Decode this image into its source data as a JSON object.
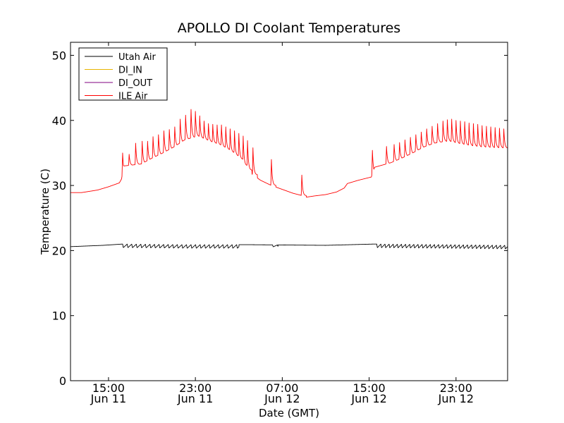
{
  "chart_data": {
    "type": "line",
    "title": "APOLLO DI Coolant Temperatures",
    "xlabel": "Date (GMT)",
    "ylabel": "Temperature (C)",
    "ylim": [
      0,
      52
    ],
    "xlim_hours": [
      11.5,
      51.75
    ],
    "yticks": [
      0,
      10,
      20,
      30,
      40,
      50
    ],
    "xticks": [
      {
        "hour": 15,
        "time": "15:00",
        "date": "Jun 11"
      },
      {
        "hour": 23,
        "time": "23:00",
        "date": "Jun 11"
      },
      {
        "hour": 31,
        "time": "07:00",
        "date": "Jun 12"
      },
      {
        "hour": 39,
        "time": "15:00",
        "date": "Jun 12"
      },
      {
        "hour": 47,
        "time": "23:00",
        "date": "Jun 12"
      }
    ],
    "legend_position": "top-left",
    "series": [
      {
        "name": "Utah Air",
        "color": "#000000",
        "baseline": [
          [
            11.5,
            20.6
          ],
          [
            14.5,
            20.8
          ],
          [
            16.3,
            21.0
          ],
          [
            22,
            20.9
          ],
          [
            28,
            20.9
          ],
          [
            35,
            20.8
          ],
          [
            39.5,
            21.0
          ],
          [
            46,
            20.9
          ],
          [
            51.75,
            20.8
          ]
        ],
        "oscillation": [
          {
            "from": 16.3,
            "to": 27.0,
            "period": 0.42,
            "dip": 0.55
          },
          {
            "from": 30.1,
            "to": 30.6,
            "period": 0.45,
            "dip": 0.3
          },
          {
            "from": 39.7,
            "to": 51.75,
            "period": 0.38,
            "dip": 0.55
          }
        ]
      },
      {
        "name": "DI_IN",
        "color": "#e8b400",
        "baseline": [],
        "oscillation": []
      },
      {
        "name": "DI_OUT",
        "color": "#800080",
        "baseline": [],
        "oscillation": []
      },
      {
        "name": "ILE Air",
        "color": "#ff0000",
        "baseline": [
          [
            11.5,
            28.9
          ],
          [
            12.5,
            28.9
          ],
          [
            14.0,
            29.3
          ],
          [
            15.0,
            29.8
          ],
          [
            16.0,
            30.4
          ],
          [
            16.2,
            31.0
          ],
          [
            16.4,
            33.0
          ],
          [
            18.0,
            33.3
          ],
          [
            19.0,
            34.2
          ],
          [
            20.0,
            35.0
          ],
          [
            21.0,
            35.9
          ],
          [
            22.0,
            37.0
          ],
          [
            23.0,
            37.5
          ],
          [
            24.0,
            36.8
          ],
          [
            25.0,
            36.2
          ],
          [
            26.0,
            35.3
          ],
          [
            27.0,
            34.0
          ],
          [
            27.3,
            33.2
          ],
          [
            28.0,
            32.0
          ],
          [
            29.0,
            30.8
          ],
          [
            30.0,
            30.0
          ],
          [
            31.0,
            29.4
          ],
          [
            32.0,
            28.8
          ],
          [
            32.7,
            28.5
          ],
          [
            33.2,
            28.2
          ],
          [
            34.0,
            28.4
          ],
          [
            35.0,
            28.6
          ],
          [
            36.0,
            29.0
          ],
          [
            36.7,
            29.6
          ],
          [
            37.0,
            30.3
          ],
          [
            38.0,
            30.8
          ],
          [
            39.2,
            31.3
          ],
          [
            39.5,
            32.8
          ],
          [
            41.0,
            33.5
          ],
          [
            42.0,
            34.2
          ],
          [
            43.0,
            35.0
          ],
          [
            44.0,
            35.9
          ],
          [
            45.0,
            36.5
          ],
          [
            46.0,
            36.8
          ],
          [
            47.0,
            36.4
          ],
          [
            48.0,
            36.1
          ],
          [
            49.0,
            35.9
          ],
          [
            50.0,
            35.8
          ],
          [
            51.75,
            35.7
          ]
        ],
        "spikes": [
          {
            "at": 16.3,
            "peak": 35.0
          },
          {
            "at": 16.9,
            "peak": 34.8
          },
          {
            "at": 17.5,
            "peak": 36.5
          },
          {
            "at": 18.1,
            "peak": 36.8
          },
          {
            "at": 18.6,
            "peak": 36.8
          },
          {
            "at": 19.1,
            "peak": 37.5
          },
          {
            "at": 19.6,
            "peak": 37.8
          },
          {
            "at": 20.1,
            "peak": 38.4
          },
          {
            "at": 20.6,
            "peak": 38.6
          },
          {
            "at": 21.1,
            "peak": 39.0
          },
          {
            "at": 21.6,
            "peak": 40.2
          },
          {
            "at": 22.1,
            "peak": 40.8
          },
          {
            "at": 22.6,
            "peak": 41.7
          },
          {
            "at": 23.0,
            "peak": 41.4
          },
          {
            "at": 23.4,
            "peak": 40.7
          },
          {
            "at": 23.8,
            "peak": 39.9
          },
          {
            "at": 24.2,
            "peak": 39.5
          },
          {
            "at": 24.6,
            "peak": 39.4
          },
          {
            "at": 25.0,
            "peak": 39.3
          },
          {
            "at": 25.4,
            "peak": 39.3
          },
          {
            "at": 25.8,
            "peak": 39.0
          },
          {
            "at": 26.2,
            "peak": 38.7
          },
          {
            "at": 26.6,
            "peak": 38.4
          },
          {
            "at": 27.0,
            "peak": 38.0
          },
          {
            "at": 27.4,
            "peak": 37.6
          },
          {
            "at": 27.8,
            "peak": 36.9
          },
          {
            "at": 28.3,
            "peak": 35.8
          },
          {
            "at": 30.0,
            "peak": 34.0
          },
          {
            "at": 32.8,
            "peak": 31.6
          },
          {
            "at": 39.3,
            "peak": 35.4
          },
          {
            "at": 40.6,
            "peak": 36.0
          },
          {
            "at": 41.3,
            "peak": 36.3
          },
          {
            "at": 41.8,
            "peak": 36.6
          },
          {
            "at": 42.3,
            "peak": 37.0
          },
          {
            "at": 42.8,
            "peak": 37.4
          },
          {
            "at": 43.3,
            "peak": 37.8
          },
          {
            "at": 43.8,
            "peak": 38.2
          },
          {
            "at": 44.3,
            "peak": 38.7
          },
          {
            "at": 44.8,
            "peak": 39.1
          },
          {
            "at": 45.3,
            "peak": 39.5
          },
          {
            "at": 45.8,
            "peak": 39.9
          },
          {
            "at": 46.2,
            "peak": 40.1
          },
          {
            "at": 46.6,
            "peak": 40.2
          },
          {
            "at": 47.0,
            "peak": 40.0
          },
          {
            "at": 47.4,
            "peak": 39.9
          },
          {
            "at": 47.8,
            "peak": 39.8
          },
          {
            "at": 48.2,
            "peak": 39.6
          },
          {
            "at": 48.6,
            "peak": 39.5
          },
          {
            "at": 49.0,
            "peak": 39.4
          },
          {
            "at": 49.4,
            "peak": 39.2
          },
          {
            "at": 49.8,
            "peak": 39.1
          },
          {
            "at": 50.2,
            "peak": 39.0
          },
          {
            "at": 50.6,
            "peak": 38.9
          },
          {
            "at": 51.0,
            "peak": 38.8
          },
          {
            "at": 51.4,
            "peak": 38.7
          }
        ]
      }
    ]
  }
}
